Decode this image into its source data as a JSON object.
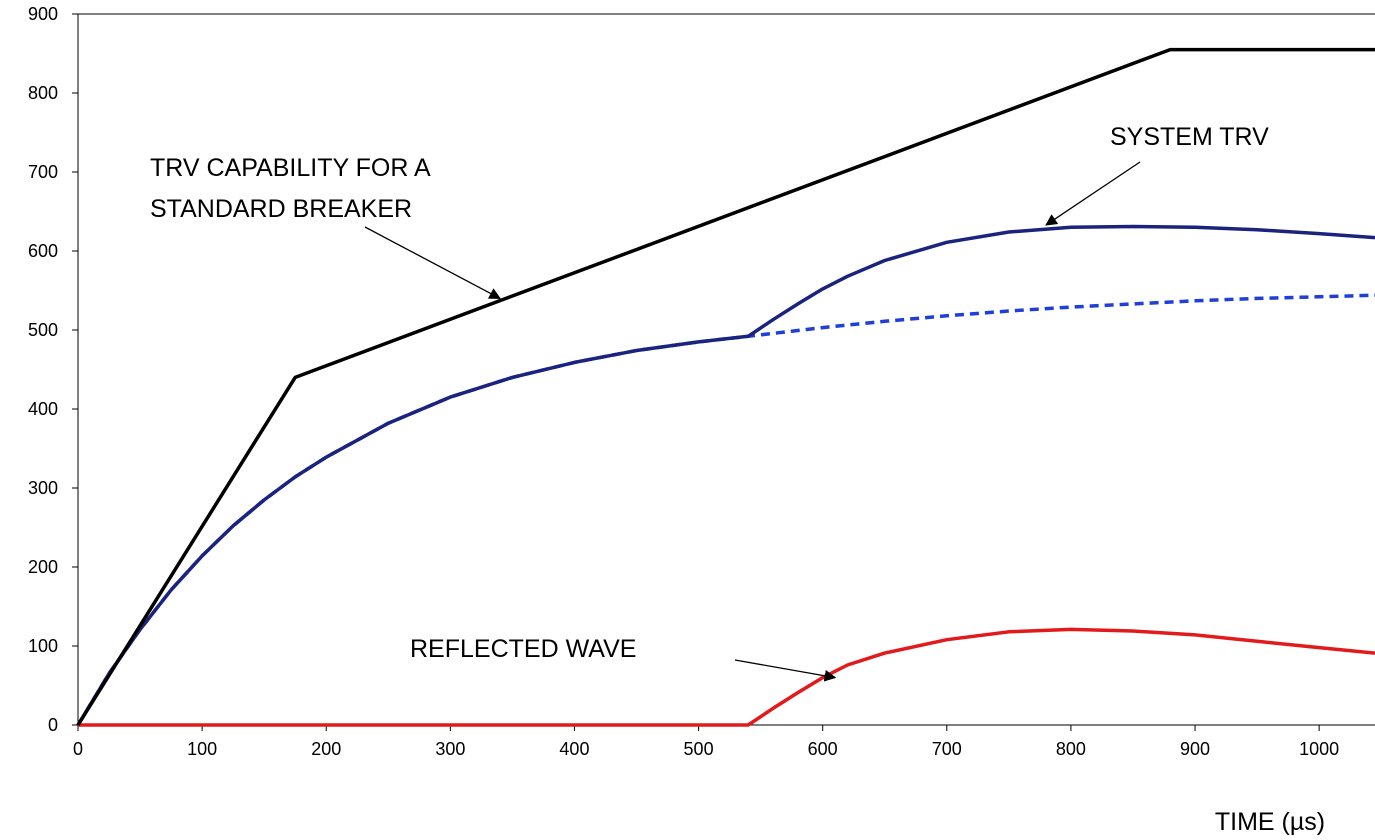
{
  "chart_data": {
    "type": "line",
    "xlabel": "TIME (µs)",
    "ylabel": "",
    "xlim": [
      0,
      1045
    ],
    "ylim": [
      0,
      900
    ],
    "x_ticks": [
      0,
      100,
      200,
      300,
      400,
      500,
      600,
      700,
      800,
      900,
      1000
    ],
    "y_ticks": [
      0,
      100,
      200,
      300,
      400,
      500,
      600,
      700,
      800,
      900
    ],
    "grid": false,
    "legend": "none",
    "annotations": [
      {
        "id": "trv-capability",
        "lines": [
          "TRV CAPABILITY FOR A",
          "STANDARD BREAKER"
        ]
      },
      {
        "id": "system-trv",
        "lines": [
          "SYSTEM  TRV"
        ]
      },
      {
        "id": "reflected-wave",
        "lines": [
          "REFLECTED WAVE"
        ]
      }
    ],
    "series": [
      {
        "id": "trv-capability",
        "color": "#000000",
        "style": "solid",
        "x": [
          0,
          175,
          880,
          1045
        ],
        "y": [
          0,
          440,
          855,
          855
        ]
      },
      {
        "id": "system-trv",
        "color": "#1a237e",
        "style": "solid",
        "x": [
          0,
          25,
          50,
          75,
          100,
          125,
          150,
          175,
          200,
          250,
          300,
          350,
          400,
          450,
          500,
          540,
          560,
          580,
          600,
          620,
          650,
          700,
          750,
          800,
          850,
          900,
          950,
          1000,
          1045
        ],
        "y": [
          0,
          65,
          121,
          171,
          214,
          252,
          285,
          314,
          339,
          382,
          415,
          440,
          459,
          474,
          485,
          492,
          513,
          533,
          552,
          568,
          588,
          611,
          624,
          630,
          631,
          630,
          627,
          622,
          617
        ]
      },
      {
        "id": "open-line-trv",
        "color": "#1f3fd6",
        "style": "dashed",
        "x": [
          0,
          25,
          50,
          75,
          100,
          125,
          150,
          175,
          200,
          250,
          300,
          350,
          400,
          450,
          500,
          540,
          600,
          650,
          700,
          750,
          800,
          850,
          900,
          950,
          1000,
          1045
        ],
        "y": [
          0,
          65,
          121,
          171,
          214,
          252,
          285,
          314,
          339,
          382,
          415,
          440,
          459,
          474,
          485,
          492,
          503,
          511,
          518,
          524,
          529,
          533,
          537,
          540,
          542,
          544
        ]
      },
      {
        "id": "reflected-wave",
        "color": "#e31a1c",
        "style": "solid",
        "x": [
          0,
          540,
          560,
          580,
          600,
          620,
          650,
          700,
          750,
          800,
          850,
          900,
          950,
          1000,
          1045
        ],
        "y": [
          0,
          0,
          21,
          41,
          60,
          76,
          91,
          108,
          118,
          121,
          119,
          114,
          106,
          98,
          91
        ]
      }
    ]
  }
}
